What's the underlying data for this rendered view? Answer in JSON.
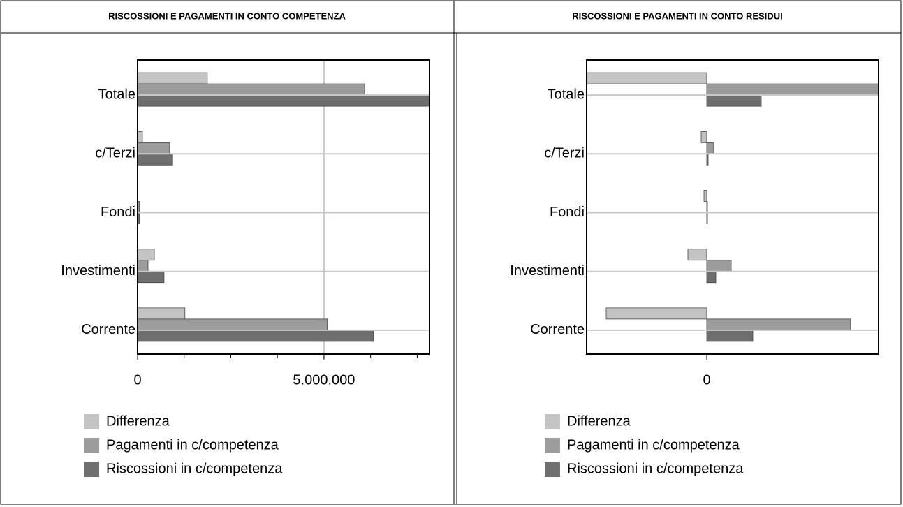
{
  "chart_data": [
    {
      "type": "bar",
      "orientation": "horizontal",
      "title": "RISCOSSIONI E PAGAMENTI IN CONTO COMPETENZA",
      "categories": [
        "Totale",
        "c/Terzi",
        "Fondi",
        "Investimenti",
        "Corrente"
      ],
      "series": [
        {
          "name": "Differenza",
          "color": "#c4c4c4",
          "values": [
            1870000,
            130000,
            10000,
            450000,
            1270000
          ]
        },
        {
          "name": "Pagamenti in c/competenza",
          "color": "#9c9c9c",
          "values": [
            6090000,
            860000,
            50000,
            280000,
            5090000
          ]
        },
        {
          "name": "Riscossioni in c/competenza",
          "color": "#6e6e6e",
          "values": [
            7960000,
            940000,
            50000,
            710000,
            6330000
          ]
        }
      ],
      "xlim": [
        0,
        7830000
      ],
      "xticks": [
        0,
        {
          "value": 5000000,
          "label": "5.000.000"
        }
      ],
      "xminorticks": [
        1250000,
        2500000,
        3750000,
        5000000,
        6250000,
        7500000
      ],
      "grid": true
    },
    {
      "type": "bar",
      "orientation": "horizontal",
      "title": "RISCOSSIONI E PAGAMENTI IN CONTO RESIDUI",
      "categories": [
        "Totale",
        "c/Terzi",
        "Fondi",
        "Investimenti",
        "Corrente"
      ],
      "series": [
        {
          "name": "Differenza",
          "color": "#c4c4c4",
          "values": [
            -1750000,
            -80000,
            -40000,
            -270000,
            -1440000
          ]
        },
        {
          "name": "Pagamenti in c/competenza",
          "color": "#9c9c9c",
          "values": [
            2530000,
            100000,
            10000,
            350000,
            2060000
          ]
        },
        {
          "name": "Riscossioni in c/competenza",
          "color": "#6e6e6e",
          "values": [
            780000,
            20000,
            10000,
            130000,
            660000
          ]
        }
      ],
      "xlim": [
        -1720000,
        2460000
      ],
      "xticks": [
        0
      ],
      "grid": false
    }
  ]
}
